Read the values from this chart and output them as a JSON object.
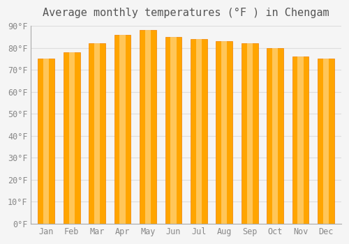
{
  "title": "Average monthly temperatures (°F ) in Chengam",
  "months": [
    "Jan",
    "Feb",
    "Mar",
    "Apr",
    "May",
    "Jun",
    "Jul",
    "Aug",
    "Sep",
    "Oct",
    "Nov",
    "Dec"
  ],
  "values": [
    75,
    78,
    82,
    86,
    88,
    85,
    84,
    83,
    82,
    80,
    76,
    75
  ],
  "ylim": [
    0,
    90
  ],
  "yticks": [
    0,
    10,
    20,
    30,
    40,
    50,
    60,
    70,
    80,
    90
  ],
  "ytick_labels": [
    "0°F",
    "10°F",
    "20°F",
    "30°F",
    "40°F",
    "50°F",
    "60°F",
    "70°F",
    "80°F",
    "90°F"
  ],
  "bar_color_main": "#FFA500",
  "bar_color_light": "#FFD580",
  "bar_color_edge": "#F08000",
  "background_color": "#f5f5f5",
  "grid_color": "#dddddd",
  "title_fontsize": 11,
  "tick_fontsize": 8.5
}
